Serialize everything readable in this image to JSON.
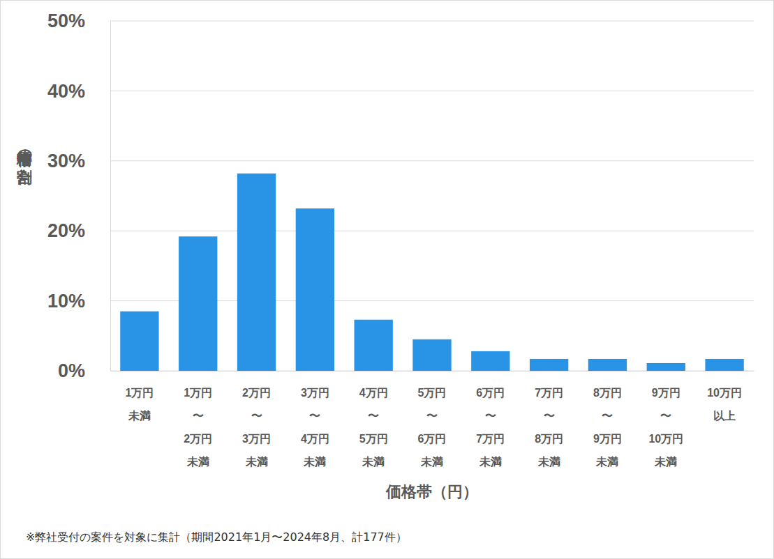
{
  "chart_data": {
    "type": "bar",
    "categories": [
      "1万円\n未満",
      "1万円\n〜\n2万円\n未満",
      "2万円\n〜\n3万円\n未満",
      "3万円\n〜\n4万円\n未満",
      "4万円\n〜\n5万円\n未満",
      "5万円\n〜\n6万円\n未満",
      "6万円\n〜\n7万円\n未満",
      "7万円\n〜\n8万円\n未満",
      "8万円\n〜\n9万円\n未満",
      "9万円\n〜\n10万円\n未満",
      "10万円\n以上"
    ],
    "values": [
      8.5,
      19.2,
      28.2,
      23.2,
      7.3,
      4.5,
      2.8,
      1.7,
      1.7,
      1.1,
      1.7
    ],
    "color": "#2994e6",
    "ylim": [
      0,
      50
    ],
    "yticks": [
      {
        "value": 0,
        "label": "0%"
      },
      {
        "value": 10,
        "label": "10%"
      },
      {
        "value": 20,
        "label": "20%"
      },
      {
        "value": 30,
        "label": "30%"
      },
      {
        "value": 40,
        "label": "40%"
      },
      {
        "value": 50,
        "label": "50%"
      }
    ],
    "grid": true,
    "x_label": "価格帯（円）",
    "y_label": "価格帯の割合",
    "footnote": "※弊社受付の案件を対象に集計（期間2021年1月〜2024年8月、計177件）"
  }
}
